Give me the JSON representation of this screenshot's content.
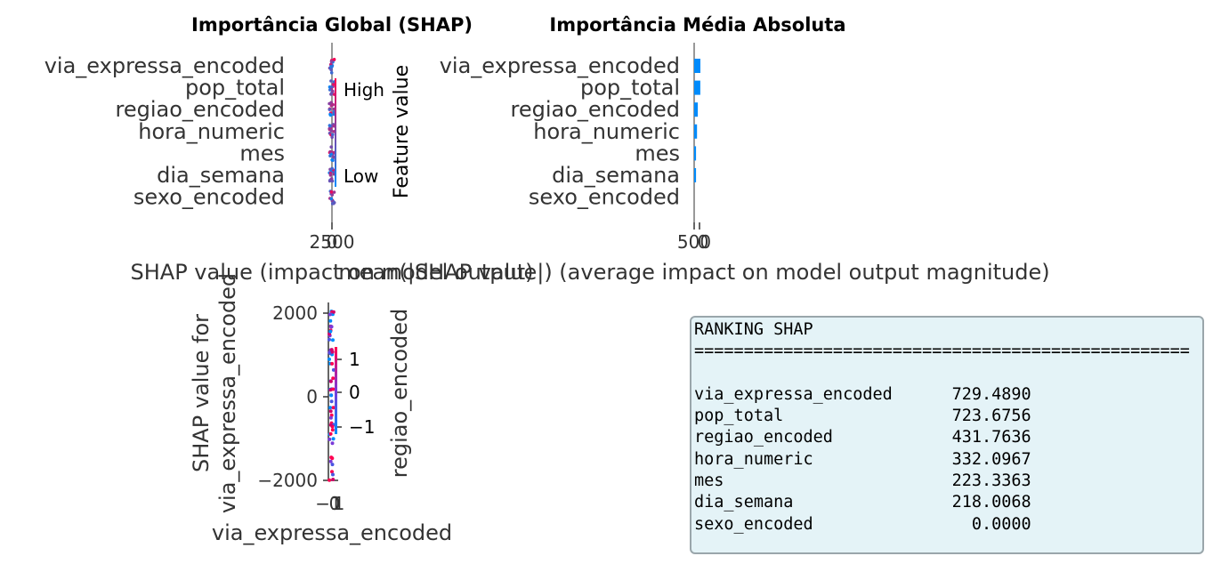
{
  "chart_data": [
    {
      "type": "scatter",
      "subtype": "shap-beeswarm",
      "title": "Importância Global (SHAP)",
      "xlabel": "SHAP value (impact on model output)",
      "features": [
        "via_expressa_encoded",
        "pop_total",
        "regiao_encoded",
        "hora_numeric",
        "mes",
        "dia_semana",
        "sexo_encoded"
      ],
      "x_tick_labels": [
        "2500",
        "0"
      ],
      "colorbar": {
        "high_label": "High",
        "low_label": "Low",
        "label": "Feature value",
        "high_color": "#ff0051",
        "low_color": "#008bfb"
      }
    },
    {
      "type": "bar",
      "title": "Importância Média Absoluta",
      "xlabel": "mean(|SHAP value|) (average impact on model output magnitude)",
      "categories": [
        "via_expressa_encoded",
        "pop_total",
        "regiao_encoded",
        "hora_numeric",
        "mes",
        "dia_semana",
        "sexo_encoded"
      ],
      "values": [
        729.489,
        723.6756,
        431.7636,
        332.0967,
        223.3363,
        218.0068,
        0.0
      ],
      "x_tick_labels": [
        "500",
        "0"
      ],
      "bar_color": "#008bfb"
    },
    {
      "type": "scatter",
      "subtype": "shap-dependence",
      "xlabel": "via_expressa_encoded",
      "ylabel": "SHAP value for\nvia_expressa_encoded",
      "color_label": "regiao_encoded",
      "y_ticks": [
        "2000",
        "0",
        "−2000"
      ],
      "x_ticks": [
        "−1",
        "0",
        "1"
      ],
      "color_ticks": [
        "1",
        "0",
        "−1"
      ]
    }
  ],
  "ranking": {
    "title": "RANKING SHAP",
    "divider": "==================================================",
    "rows": [
      {
        "feature": "via_expressa_encoded",
        "value": "729.4890"
      },
      {
        "feature": "pop_total",
        "value": "723.6756"
      },
      {
        "feature": "regiao_encoded",
        "value": "431.7636"
      },
      {
        "feature": "hora_numeric",
        "value": "332.0967"
      },
      {
        "feature": "mes",
        "value": "223.3363"
      },
      {
        "feature": "dia_semana",
        "value": "218.0068"
      },
      {
        "feature": "sexo_encoded",
        "value": "0.0000"
      }
    ]
  }
}
